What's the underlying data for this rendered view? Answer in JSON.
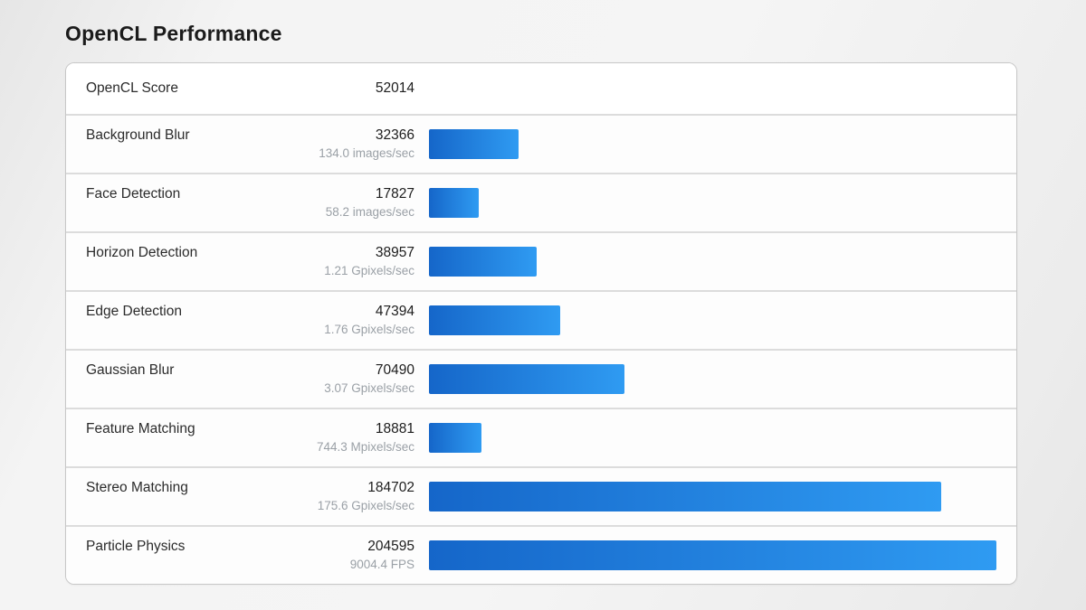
{
  "chart_data": {
    "type": "bar",
    "title": "OpenCL Performance",
    "summary": {
      "label": "OpenCL Score",
      "value": 52014
    },
    "max_value": 204595,
    "bar_color_start": "#1566c9",
    "bar_color_end": "#2f9bf2",
    "xlabel": "",
    "ylabel": "",
    "legend": "none",
    "grid": false,
    "rows": [
      {
        "label": "Background Blur",
        "value": 32366,
        "rate": "134.0 images/sec"
      },
      {
        "label": "Face Detection",
        "value": 17827,
        "rate": "58.2 images/sec"
      },
      {
        "label": "Horizon Detection",
        "value": 38957,
        "rate": "1.21 Gpixels/sec"
      },
      {
        "label": "Edge Detection",
        "value": 47394,
        "rate": "1.76 Gpixels/sec"
      },
      {
        "label": "Gaussian Blur",
        "value": 70490,
        "rate": "3.07 Gpixels/sec"
      },
      {
        "label": "Feature Matching",
        "value": 18881,
        "rate": "744.3 Mpixels/sec"
      },
      {
        "label": "Stereo Matching",
        "value": 184702,
        "rate": "175.6 Gpixels/sec"
      },
      {
        "label": "Particle Physics",
        "value": 204595,
        "rate": "9004.4 FPS"
      }
    ]
  }
}
